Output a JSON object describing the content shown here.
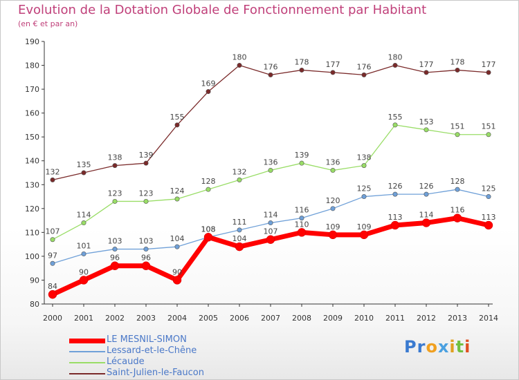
{
  "chart_data": {
    "type": "line",
    "title": "Evolution de la Dotation Globale de Fonctionnement par Habitant",
    "subtitle": "(en € et par an)",
    "x": [
      "2000",
      "2001",
      "2002",
      "2003",
      "2004",
      "2005",
      "2006",
      "2007",
      "2008",
      "2009",
      "2010",
      "2011",
      "2012",
      "2013",
      "2014"
    ],
    "ylim": [
      80,
      190
    ],
    "yticks": [
      80,
      90,
      100,
      110,
      120,
      130,
      140,
      150,
      160,
      170,
      180,
      190
    ],
    "legend_position": "bottom-left",
    "series": [
      {
        "name": "LE MESNIL-SIMON",
        "color": "#ff0000",
        "values": [
          84,
          90,
          96,
          96,
          90,
          108,
          104,
          107,
          110,
          109,
          109,
          113,
          114,
          116,
          113
        ]
      },
      {
        "name": "Lessard-et-le-Chêne",
        "color": "#6fa0d8",
        "values": [
          97,
          101,
          103,
          103,
          104,
          108,
          111,
          114,
          116,
          120,
          125,
          126,
          126,
          128,
          125
        ]
      },
      {
        "name": "Lécaude",
        "color": "#99dd66",
        "values": [
          107,
          114,
          123,
          123,
          124,
          128,
          132,
          136,
          139,
          136,
          138,
          155,
          153,
          151,
          151
        ]
      },
      {
        "name": "Saint-Julien-le-Faucon",
        "color": "#7a2a2a",
        "values": [
          132,
          135,
          138,
          139,
          155,
          169,
          180,
          176,
          178,
          177,
          176,
          180,
          177,
          178,
          177
        ]
      }
    ]
  },
  "logo": {
    "letters": [
      {
        "ch": "P",
        "color": "#3a7ad0"
      },
      {
        "ch": "r",
        "color": "#3a7ad0"
      },
      {
        "ch": "o",
        "color": "#f0a020"
      },
      {
        "ch": "x",
        "color": "#4aa0e0"
      },
      {
        "ch": "i",
        "color": "#e0a020"
      },
      {
        "ch": "t",
        "color": "#70c040"
      },
      {
        "ch": "i",
        "color": "#e05020"
      }
    ]
  }
}
